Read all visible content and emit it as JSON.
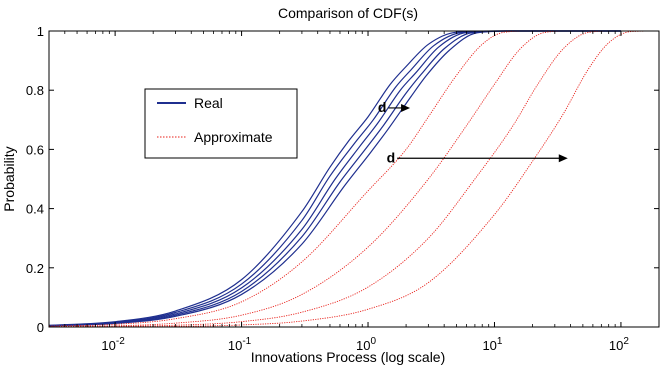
{
  "chart_data": {
    "type": "line",
    "title": "Comparison of CDF(s)",
    "xlabel": "Innovations Process (log scale)",
    "ylabel": "Probability",
    "xscale": "log",
    "xlim": [
      0.003,
      200
    ],
    "ylim": [
      0,
      1
    ],
    "x_ticks": [
      {
        "value": 0.01,
        "base": "10",
        "exp": "-2"
      },
      {
        "value": 0.1,
        "base": "10",
        "exp": "-1"
      },
      {
        "value": 1,
        "base": "10",
        "exp": "0"
      },
      {
        "value": 10,
        "base": "10",
        "exp": "1"
      },
      {
        "value": 100,
        "base": "10",
        "exp": "2"
      }
    ],
    "y_ticks": [
      {
        "value": 0,
        "label": "0"
      },
      {
        "value": 0.2,
        "label": "0.2"
      },
      {
        "value": 0.4,
        "label": "0.4"
      },
      {
        "value": 0.6,
        "label": "0.6"
      },
      {
        "value": 0.8,
        "label": "0.8"
      },
      {
        "value": 1,
        "label": "1"
      }
    ],
    "grid": false,
    "legend": {
      "position": "upper-left",
      "entries": [
        {
          "label": "Real",
          "color": "#1f2f8f",
          "style": "solid"
        },
        {
          "label": "Approximate",
          "color": "#e8201a",
          "style": "dotted"
        }
      ]
    },
    "series": [
      {
        "group": "Real",
        "color": "#1f2f8f",
        "style": "solid",
        "shape": 1.2,
        "points": [
          [
            0.003,
            0.0056
          ],
          [
            0.01,
            0.018
          ],
          [
            0.03,
            0.054
          ],
          [
            0.1,
            0.16
          ],
          [
            0.3,
            0.39
          ],
          [
            0.5,
            0.54
          ],
          [
            0.707,
            0.63
          ],
          [
            1,
            0.71
          ],
          [
            1.5,
            0.82
          ],
          [
            2,
            0.88
          ],
          [
            3,
            0.955
          ],
          [
            5,
            0.996
          ],
          [
            10,
            1.0
          ],
          [
            100,
            1.0
          ]
        ]
      },
      {
        "group": "Real",
        "color": "#1f2f8f",
        "style": "solid",
        "shape": 1.2,
        "points": [
          [
            0.003,
            0.005
          ],
          [
            0.01,
            0.016
          ],
          [
            0.03,
            0.049
          ],
          [
            0.1,
            0.145
          ],
          [
            0.3,
            0.36
          ],
          [
            0.5,
            0.51
          ],
          [
            0.78,
            0.62
          ],
          [
            1.1,
            0.7
          ],
          [
            1.65,
            0.81
          ],
          [
            2.2,
            0.87
          ],
          [
            3.3,
            0.95
          ],
          [
            5.5,
            0.995
          ],
          [
            11,
            1.0
          ],
          [
            100,
            1.0
          ]
        ]
      },
      {
        "group": "Real",
        "color": "#1f2f8f",
        "style": "solid",
        "shape": 1.2,
        "points": [
          [
            0.003,
            0.0045
          ],
          [
            0.01,
            0.015
          ],
          [
            0.03,
            0.044
          ],
          [
            0.1,
            0.132
          ],
          [
            0.3,
            0.33
          ],
          [
            0.55,
            0.5
          ],
          [
            0.86,
            0.61
          ],
          [
            1.2,
            0.69
          ],
          [
            1.8,
            0.8
          ],
          [
            2.4,
            0.86
          ],
          [
            3.6,
            0.945
          ],
          [
            6,
            0.995
          ],
          [
            12,
            1.0
          ],
          [
            100,
            1.0
          ]
        ]
      },
      {
        "group": "Real",
        "color": "#1f2f8f",
        "style": "solid",
        "shape": 1.2,
        "points": [
          [
            0.003,
            0.004
          ],
          [
            0.01,
            0.013
          ],
          [
            0.03,
            0.04
          ],
          [
            0.1,
            0.12
          ],
          [
            0.3,
            0.305
          ],
          [
            0.6,
            0.49
          ],
          [
            0.95,
            0.6
          ],
          [
            1.32,
            0.68
          ],
          [
            2,
            0.79
          ],
          [
            2.65,
            0.855
          ],
          [
            4,
            0.94
          ],
          [
            6.6,
            0.994
          ],
          [
            13,
            1.0
          ],
          [
            100,
            1.0
          ]
        ]
      },
      {
        "group": "Real",
        "color": "#1f2f8f",
        "style": "solid",
        "shape": 1.2,
        "points": [
          [
            0.003,
            0.0035
          ],
          [
            0.01,
            0.012
          ],
          [
            0.03,
            0.036
          ],
          [
            0.1,
            0.11
          ],
          [
            0.3,
            0.28
          ],
          [
            0.66,
            0.48
          ],
          [
            1.05,
            0.59
          ],
          [
            1.45,
            0.67
          ],
          [
            2.2,
            0.78
          ],
          [
            2.9,
            0.85
          ],
          [
            4.4,
            0.935
          ],
          [
            7.3,
            0.994
          ],
          [
            14,
            1.0
          ],
          [
            100,
            1.0
          ]
        ]
      },
      {
        "group": "Approximate",
        "color": "#e8201a",
        "style": "dotted",
        "shape": 1.2,
        "points": [
          [
            0.003,
            0.0027
          ],
          [
            0.01,
            0.009
          ],
          [
            0.03,
            0.028
          ],
          [
            0.1,
            0.085
          ],
          [
            0.3,
            0.22
          ],
          [
            1,
            0.46
          ],
          [
            2,
            0.6
          ],
          [
            3,
            0.71
          ],
          [
            5,
            0.85
          ],
          [
            8,
            0.955
          ],
          [
            12,
            0.996
          ],
          [
            20,
            1.0
          ],
          [
            200,
            1.0
          ]
        ]
      },
      {
        "group": "Approximate",
        "color": "#e8201a",
        "style": "dotted",
        "shape": 1.2,
        "points": [
          [
            0.003,
            0.0012
          ],
          [
            0.01,
            0.004
          ],
          [
            0.03,
            0.013
          ],
          [
            0.1,
            0.04
          ],
          [
            0.3,
            0.11
          ],
          [
            1,
            0.27
          ],
          [
            3,
            0.5
          ],
          [
            6,
            0.68
          ],
          [
            10,
            0.82
          ],
          [
            16,
            0.94
          ],
          [
            25,
            0.995
          ],
          [
            40,
            1.0
          ],
          [
            200,
            1.0
          ]
        ]
      },
      {
        "group": "Approximate",
        "color": "#e8201a",
        "style": "dotted",
        "shape": 1.2,
        "points": [
          [
            0.003,
            0.0006
          ],
          [
            0.01,
            0.002
          ],
          [
            0.03,
            0.006
          ],
          [
            0.1,
            0.018
          ],
          [
            0.3,
            0.05
          ],
          [
            1,
            0.135
          ],
          [
            3,
            0.3
          ],
          [
            7,
            0.5
          ],
          [
            14,
            0.68
          ],
          [
            22,
            0.82
          ],
          [
            35,
            0.94
          ],
          [
            55,
            0.995
          ],
          [
            90,
            1.0
          ],
          [
            200,
            1.0
          ]
        ]
      },
      {
        "group": "Approximate",
        "color": "#e8201a",
        "style": "dotted",
        "shape": 1.2,
        "points": [
          [
            0.003,
            0.0002
          ],
          [
            0.01,
            0.0007
          ],
          [
            0.03,
            0.002
          ],
          [
            0.1,
            0.007
          ],
          [
            0.3,
            0.02
          ],
          [
            1,
            0.06
          ],
          [
            3,
            0.15
          ],
          [
            10,
            0.38
          ],
          [
            20,
            0.56
          ],
          [
            35,
            0.72
          ],
          [
            55,
            0.87
          ],
          [
            80,
            0.96
          ],
          [
            120,
            0.998
          ],
          [
            200,
            1.0
          ]
        ]
      }
    ],
    "annotations": [
      {
        "label": "d",
        "from": [
          1.45,
          0.74
        ],
        "to": [
          2.15,
          0.74
        ]
      },
      {
        "label": "d",
        "from": [
          1.7,
          0.57
        ],
        "to": [
          38,
          0.57
        ]
      }
    ]
  }
}
